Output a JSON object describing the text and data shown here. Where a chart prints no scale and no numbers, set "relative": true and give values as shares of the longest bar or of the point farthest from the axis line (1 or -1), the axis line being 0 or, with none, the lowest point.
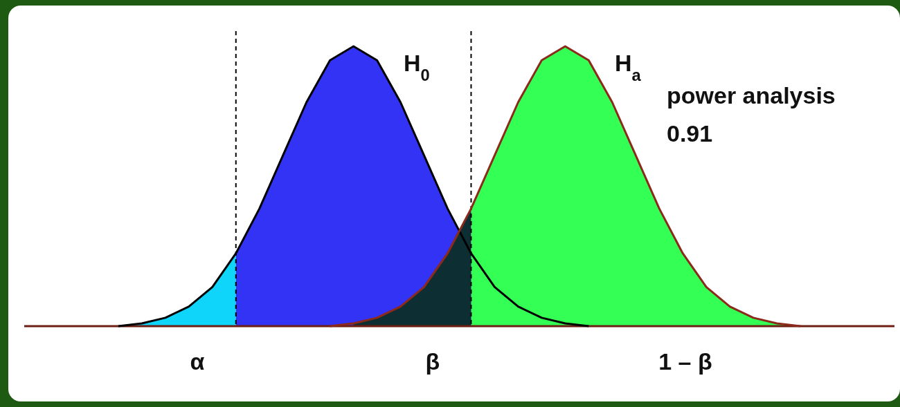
{
  "chart_data": {
    "type": "area",
    "relative": true,
    "categories": [
      null,
      null,
      null,
      null,
      null,
      null,
      null,
      null,
      null,
      null,
      null,
      null,
      null,
      null,
      null,
      null,
      null,
      null,
      null,
      null,
      null,
      null,
      null,
      null,
      null,
      null,
      null,
      null,
      null,
      null,
      null,
      null,
      null,
      null,
      null,
      null,
      null,
      null
    ],
    "series": [
      {
        "color": "#0fd5fb",
        "values": [
          0,
          0,
          0,
          0,
          0,
          0.01,
          0.03,
          0.07,
          0.14,
          0.26,
          null,
          null,
          null,
          null,
          null,
          null,
          null,
          null,
          null,
          null,
          null,
          null,
          null,
          null,
          null,
          null,
          null,
          null,
          null,
          null,
          null,
          null,
          null,
          null,
          null,
          null,
          null,
          null
        ]
      },
      {
        "color": "#3333f5",
        "values": [
          null,
          null,
          null,
          null,
          null,
          null,
          null,
          null,
          null,
          0.26,
          0.42,
          0.61,
          0.8,
          0.95,
          1,
          0.95,
          0.8,
          0.61,
          0.42,
          0.26,
          null,
          null,
          null,
          null,
          null,
          null,
          null,
          null,
          null,
          null,
          null,
          null,
          null,
          null,
          null,
          null,
          null,
          null
        ]
      },
      {
        "color": "#33ff55",
        "values": [
          null,
          null,
          null,
          null,
          null,
          null,
          null,
          null,
          null,
          null,
          null,
          null,
          null,
          null,
          null,
          null,
          null,
          null,
          null,
          0.42,
          0.61,
          0.8,
          0.95,
          1,
          0.95,
          0.8,
          0.61,
          0.42,
          0.26,
          0.14,
          0.07,
          0.03,
          0.01,
          0,
          0,
          0,
          0,
          0
        ]
      },
      {
        "color": "#0d2e33",
        "values": [
          null,
          null,
          null,
          null,
          null,
          null,
          null,
          null,
          null,
          null,
          null,
          null,
          null,
          null,
          0.01,
          0.03,
          0.07,
          0.14,
          0.26,
          0.42,
          null,
          null,
          null,
          null,
          null,
          null,
          null,
          null,
          null,
          null,
          null,
          null,
          null,
          null,
          null,
          null,
          null,
          null
        ]
      },
      {
        "type": "line",
        "color": "#000000",
        "values": [
          null,
          null,
          null,
          null,
          0,
          0.01,
          0.03,
          0.07,
          0.14,
          0.26,
          0.42,
          0.61,
          0.8,
          0.95,
          1,
          0.95,
          0.8,
          0.61,
          0.42,
          0.26,
          0.14,
          0.07,
          0.03,
          0.01,
          0,
          null,
          null,
          null,
          null,
          null,
          null,
          null,
          null,
          null,
          null,
          null,
          null,
          null
        ]
      },
      {
        "type": "line",
        "color": "#8b2a1a",
        "values": [
          null,
          null,
          null,
          null,
          null,
          null,
          null,
          null,
          null,
          null,
          null,
          null,
          null,
          0,
          0.01,
          0.03,
          0.07,
          0.14,
          0.26,
          0.42,
          0.61,
          0.8,
          0.95,
          1,
          0.95,
          0.8,
          0.61,
          0.42,
          0.26,
          0.14,
          0.07,
          0.03,
          0.01,
          0,
          null,
          null,
          null,
          null
        ]
      }
    ],
    "annotations": [
      "H$_{0}$",
      "H$_{a}$",
      "power analysis",
      "0.91",
      "α",
      "β",
      "1 – β"
    ]
  }
}
